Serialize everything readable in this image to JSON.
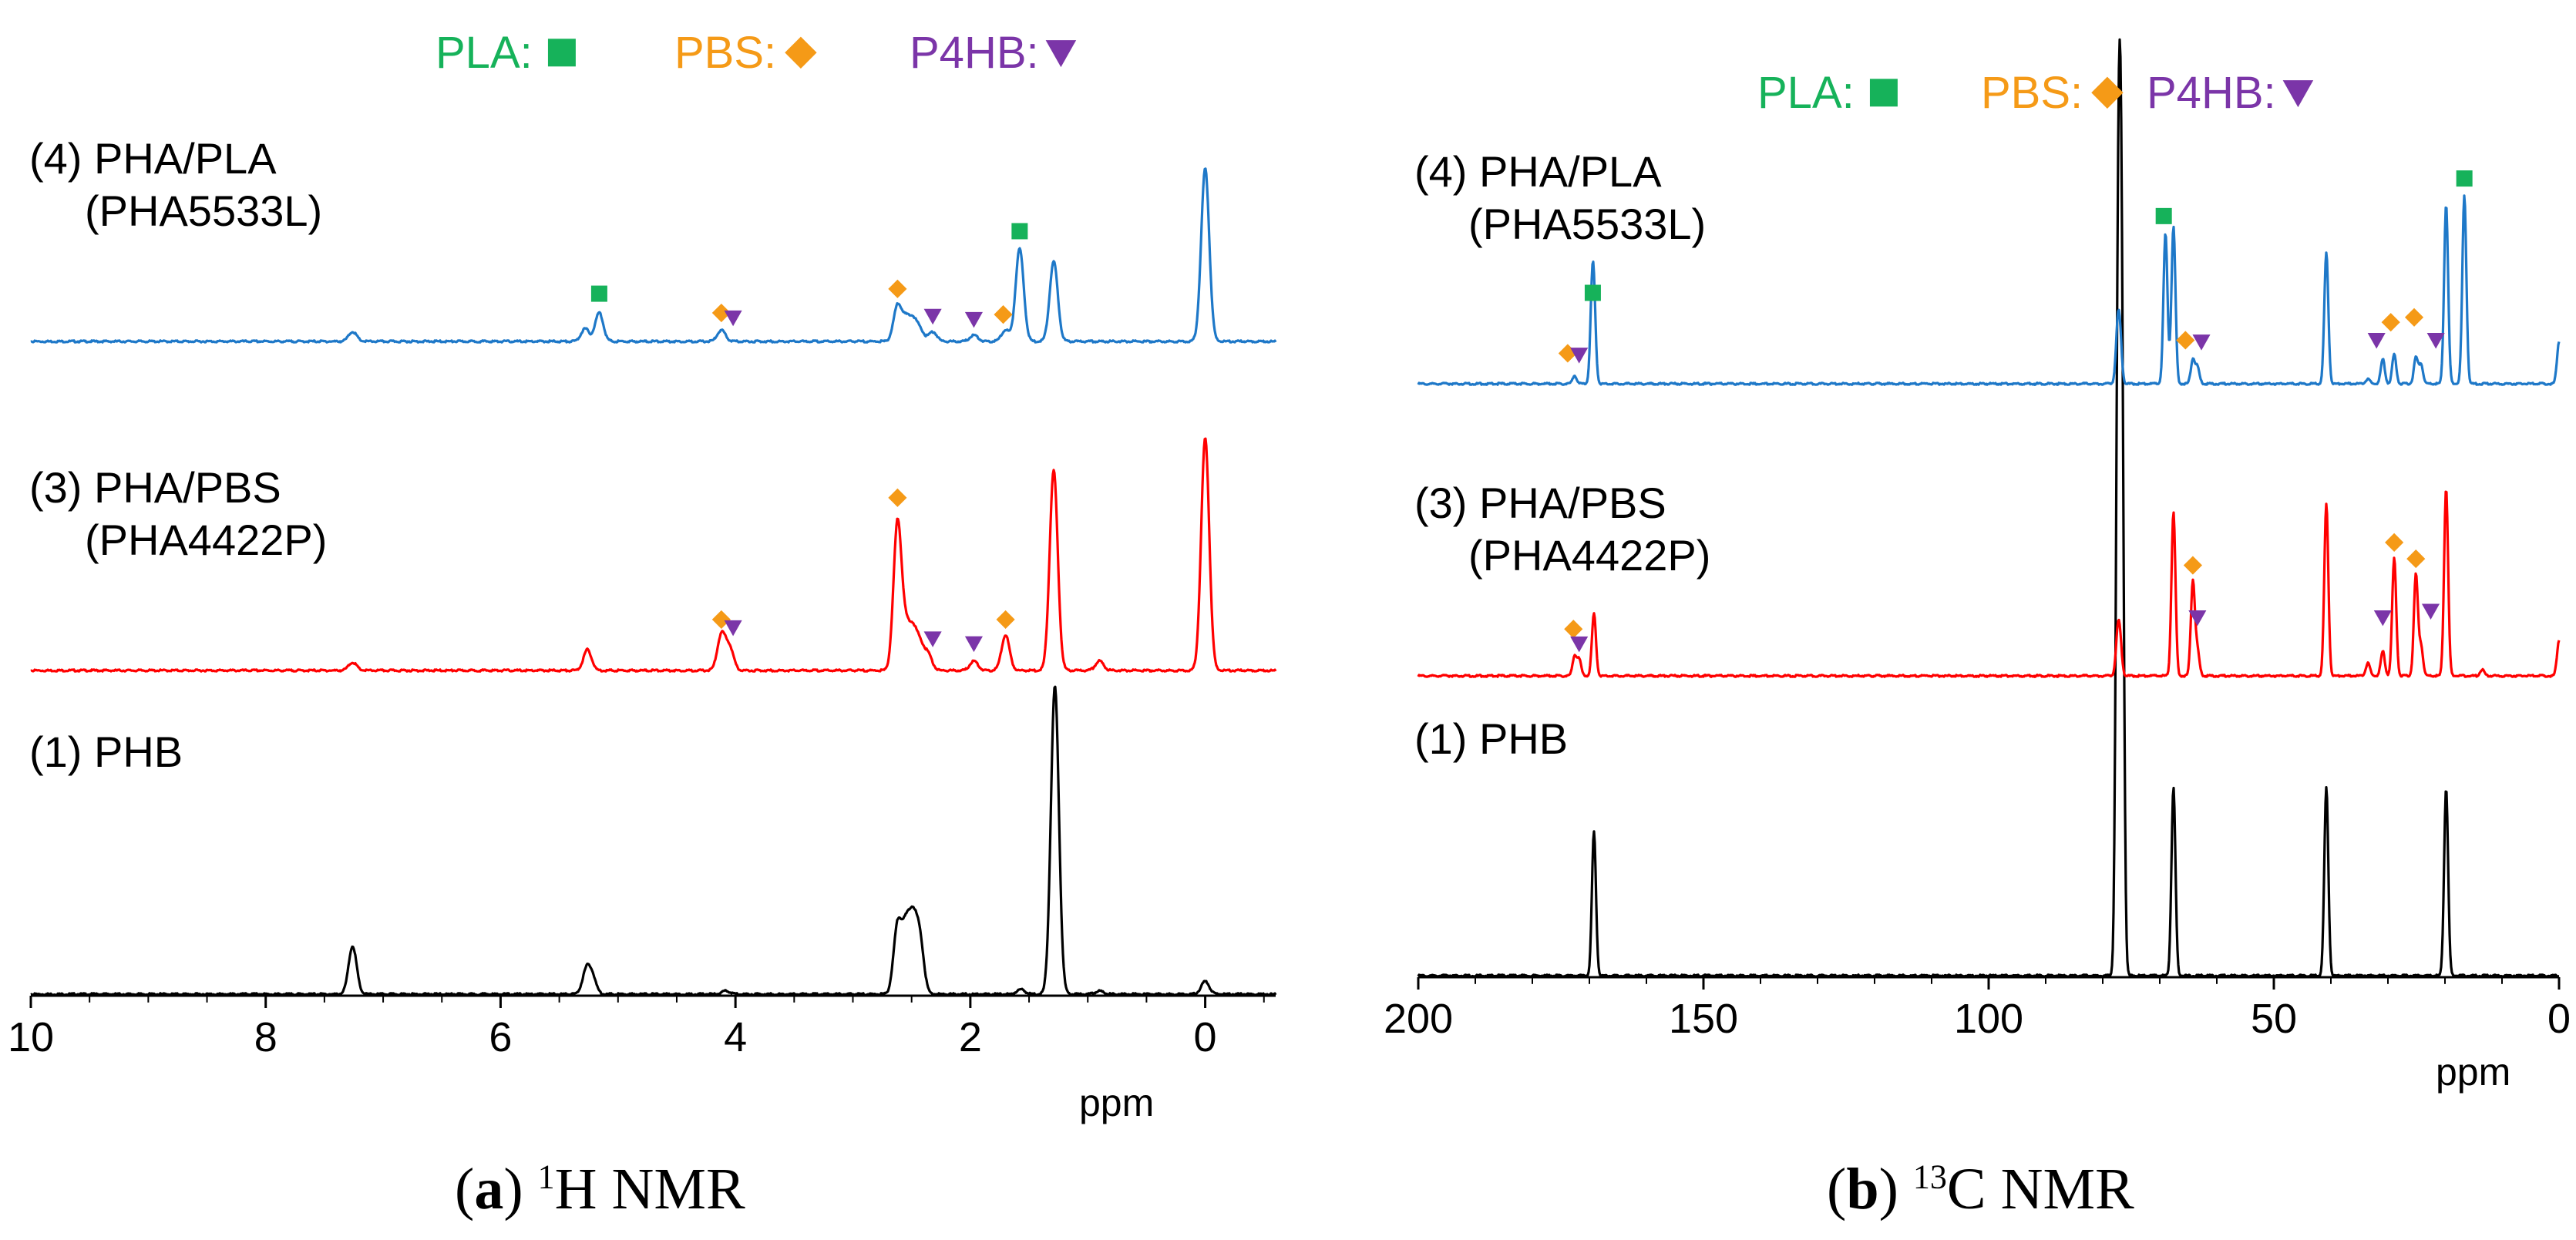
{
  "chart_data": [
    {
      "type": "line",
      "panel": "a",
      "panel_label": "a",
      "title": "H NMR",
      "title_sup": "1",
      "xlabel": "ppm",
      "ylabel": "",
      "xlim": [
        10,
        -0.6
      ],
      "x_reversed": true,
      "grid": false,
      "ticks": [
        10,
        8,
        6,
        4,
        2,
        0
      ],
      "tick_labels": [
        "10",
        "8",
        "6",
        "4",
        "2",
        "0"
      ],
      "legend": [
        {
          "name": "PLA:",
          "marker": "square",
          "color": "#16b25a"
        },
        {
          "name": "PBS:",
          "marker": "diamond",
          "color": "#f59a17"
        },
        {
          "name": "P4HB:",
          "marker": "triangle-down",
          "color": "#7b35a8"
        }
      ],
      "series": [
        {
          "name": "(1) PHB",
          "label": "(1) PHB",
          "sublabel": "",
          "color": "#000000",
          "peaks": [
            {
              "ppm": 7.26,
              "h": 0.3
            },
            {
              "ppm": 5.27,
              "h": 0.14
            },
            {
              "ppm": 5.22,
              "h": 0.1
            },
            {
              "ppm": 4.08,
              "h": 0.02
            },
            {
              "ppm": 2.62,
              "h": 0.42
            },
            {
              "ppm": 2.55,
              "h": 0.36
            },
            {
              "ppm": 2.49,
              "h": 0.4
            },
            {
              "ppm": 2.43,
              "h": 0.33
            },
            {
              "ppm": 1.57,
              "h": 0.03
            },
            {
              "ppm": 1.28,
              "h": 1.92
            },
            {
              "ppm": 0.9,
              "h": 0.02
            },
            {
              "ppm": 0.0,
              "h": 0.08
            }
          ],
          "markers": []
        },
        {
          "name": "(3) PHA/PBS",
          "label": "(3) PHA/PBS",
          "sublabel": "(PHA4422P)",
          "color": "#ff0000",
          "peaks": [
            {
              "ppm": 7.26,
              "h": 0.05
            },
            {
              "ppm": 5.26,
              "h": 0.13
            },
            {
              "ppm": 4.12,
              "h": 0.22
            },
            {
              "ppm": 4.05,
              "h": 0.14
            },
            {
              "ppm": 2.62,
              "h": 0.92
            },
            {
              "ppm": 2.55,
              "h": 0.22
            },
            {
              "ppm": 2.49,
              "h": 0.22
            },
            {
              "ppm": 2.43,
              "h": 0.15
            },
            {
              "ppm": 2.36,
              "h": 0.1
            },
            {
              "ppm": 1.97,
              "h": 0.06
            },
            {
              "ppm": 1.7,
              "h": 0.22
            },
            {
              "ppm": 1.29,
              "h": 1.25
            },
            {
              "ppm": 0.9,
              "h": 0.06
            },
            {
              "ppm": 0.0,
              "h": 1.45
            }
          ],
          "markers": [
            {
              "ppm": 4.12,
              "h": 0.26,
              "type": "diamond"
            },
            {
              "ppm": 4.02,
              "h": 0.21,
              "type": "triangle-down"
            },
            {
              "ppm": 2.62,
              "h": 1.02,
              "type": "diamond"
            },
            {
              "ppm": 2.32,
              "h": 0.14,
              "type": "triangle-down"
            },
            {
              "ppm": 1.97,
              "h": 0.11,
              "type": "triangle-down"
            },
            {
              "ppm": 1.7,
              "h": 0.26,
              "type": "diamond"
            }
          ]
        },
        {
          "name": "(4) PHA/PLA",
          "label": "(4) PHA/PLA",
          "sublabel": "(PHA5533L)",
          "color": "#1e78c8",
          "peaks": [
            {
              "ppm": 7.26,
              "h": 0.06
            },
            {
              "ppm": 5.28,
              "h": 0.08
            },
            {
              "ppm": 5.16,
              "h": 0.18
            },
            {
              "ppm": 4.12,
              "h": 0.07
            },
            {
              "ppm": 2.62,
              "h": 0.22
            },
            {
              "ppm": 2.55,
              "h": 0.12
            },
            {
              "ppm": 2.49,
              "h": 0.12
            },
            {
              "ppm": 2.43,
              "h": 0.07
            },
            {
              "ppm": 2.32,
              "h": 0.06
            },
            {
              "ppm": 1.97,
              "h": 0.04
            },
            {
              "ppm": 1.7,
              "h": 0.07
            },
            {
              "ppm": 1.58,
              "h": 0.58
            },
            {
              "ppm": 1.29,
              "h": 0.5
            },
            {
              "ppm": 0.0,
              "h": 1.08
            }
          ],
          "markers": [
            {
              "ppm": 5.16,
              "h": 0.24,
              "type": "square"
            },
            {
              "ppm": 4.12,
              "h": 0.12,
              "type": "diamond"
            },
            {
              "ppm": 4.02,
              "h": 0.09,
              "type": "triangle-down"
            },
            {
              "ppm": 2.62,
              "h": 0.27,
              "type": "diamond"
            },
            {
              "ppm": 2.32,
              "h": 0.1,
              "type": "triangle-down"
            },
            {
              "ppm": 1.97,
              "h": 0.08,
              "type": "triangle-down"
            },
            {
              "ppm": 1.72,
              "h": 0.11,
              "type": "diamond"
            },
            {
              "ppm": 1.58,
              "h": 0.63,
              "type": "square"
            }
          ]
        }
      ]
    },
    {
      "type": "line",
      "panel": "b",
      "panel_label": "b",
      "title": "C NMR",
      "title_sup": "13",
      "xlabel": "ppm",
      "ylabel": "",
      "xlim": [
        200,
        0
      ],
      "x_reversed": true,
      "grid": false,
      "ticks": [
        200,
        150,
        100,
        50,
        0
      ],
      "tick_labels": [
        "200",
        "150",
        "100",
        "50",
        "0"
      ],
      "legend": [
        {
          "name": "PLA:",
          "marker": "square",
          "color": "#16b25a"
        },
        {
          "name": "PBS:",
          "marker": "diamond",
          "color": "#f59a17"
        },
        {
          "name": "P4HB:",
          "marker": "triangle-down",
          "color": "#7b35a8"
        }
      ],
      "series": [
        {
          "name": "(1) PHB",
          "label": "(1) PHB",
          "sublabel": "",
          "color": "#000000",
          "peaks": [
            {
              "ppm": 169.2,
              "h": 0.88
            },
            {
              "ppm": 77.4,
              "h": 2.85
            },
            {
              "ppm": 77.0,
              "h": 2.8
            },
            {
              "ppm": 76.6,
              "h": 2.75
            },
            {
              "ppm": 67.6,
              "h": 1.15
            },
            {
              "ppm": 40.8,
              "h": 1.15
            },
            {
              "ppm": 19.8,
              "h": 1.15
            }
          ],
          "markers": []
        },
        {
          "name": "(3) PHA/PBS",
          "label": "(3) PHA/PBS",
          "sublabel": "(PHA4422P)",
          "color": "#ff0000",
          "peaks": [
            {
              "ppm": 172.6,
              "h": 0.12
            },
            {
              "ppm": 171.8,
              "h": 0.1
            },
            {
              "ppm": 169.2,
              "h": 0.38
            },
            {
              "ppm": 77.4,
              "h": 0.2
            },
            {
              "ppm": 77.0,
              "h": 0.2
            },
            {
              "ppm": 67.6,
              "h": 1.0
            },
            {
              "ppm": 64.2,
              "h": 0.58
            },
            {
              "ppm": 63.4,
              "h": 0.15
            },
            {
              "ppm": 40.8,
              "h": 1.05
            },
            {
              "ppm": 33.5,
              "h": 0.08
            },
            {
              "ppm": 30.9,
              "h": 0.15
            },
            {
              "ppm": 28.9,
              "h": 0.72
            },
            {
              "ppm": 25.1,
              "h": 0.62
            },
            {
              "ppm": 24.2,
              "h": 0.18
            },
            {
              "ppm": 19.8,
              "h": 1.15
            },
            {
              "ppm": 13.5,
              "h": 0.04
            },
            {
              "ppm": 0.0,
              "h": 0.22
            }
          ],
          "markers": [
            {
              "ppm": 172.8,
              "h": 0.23,
              "type": "diamond"
            },
            {
              "ppm": 171.8,
              "h": 0.14,
              "type": "triangle-down"
            },
            {
              "ppm": 64.2,
              "h": 0.62,
              "type": "diamond"
            },
            {
              "ppm": 63.4,
              "h": 0.3,
              "type": "triangle-down"
            },
            {
              "ppm": 30.9,
              "h": 0.3,
              "type": "triangle-down"
            },
            {
              "ppm": 28.9,
              "h": 0.76,
              "type": "diamond"
            },
            {
              "ppm": 25.1,
              "h": 0.66,
              "type": "diamond"
            },
            {
              "ppm": 22.5,
              "h": 0.34,
              "type": "triangle-down"
            }
          ]
        },
        {
          "name": "(4) PHA/PLA",
          "label": "(4) PHA/PLA",
          "sublabel": "(PHA5533L)",
          "color": "#1e78c8",
          "peaks": [
            {
              "ppm": 172.6,
              "h": 0.05
            },
            {
              "ppm": 169.5,
              "h": 0.46
            },
            {
              "ppm": 169.2,
              "h": 0.36
            },
            {
              "ppm": 77.4,
              "h": 0.27
            },
            {
              "ppm": 77.0,
              "h": 0.26
            },
            {
              "ppm": 69.0,
              "h": 0.92
            },
            {
              "ppm": 67.6,
              "h": 0.96
            },
            {
              "ppm": 64.2,
              "h": 0.15
            },
            {
              "ppm": 63.4,
              "h": 0.1
            },
            {
              "ppm": 40.8,
              "h": 0.8
            },
            {
              "ppm": 33.5,
              "h": 0.03
            },
            {
              "ppm": 30.9,
              "h": 0.15
            },
            {
              "ppm": 28.9,
              "h": 0.18
            },
            {
              "ppm": 25.1,
              "h": 0.16
            },
            {
              "ppm": 24.2,
              "h": 0.12
            },
            {
              "ppm": 19.8,
              "h": 1.1
            },
            {
              "ppm": 16.6,
              "h": 1.15
            },
            {
              "ppm": 0.0,
              "h": 0.26
            }
          ],
          "markers": [
            {
              "ppm": 169.4,
              "h": 0.5,
              "type": "square"
            },
            {
              "ppm": 173.8,
              "h": 0.13,
              "type": "diamond"
            },
            {
              "ppm": 171.8,
              "h": 0.12,
              "type": "triangle-down"
            },
            {
              "ppm": 69.3,
              "h": 0.97,
              "type": "square"
            },
            {
              "ppm": 65.5,
              "h": 0.21,
              "type": "diamond"
            },
            {
              "ppm": 62.7,
              "h": 0.2,
              "type": "triangle-down"
            },
            {
              "ppm": 32.0,
              "h": 0.21,
              "type": "triangle-down"
            },
            {
              "ppm": 29.5,
              "h": 0.32,
              "type": "diamond"
            },
            {
              "ppm": 25.4,
              "h": 0.35,
              "type": "diamond"
            },
            {
              "ppm": 21.6,
              "h": 0.21,
              "type": "triangle-down"
            },
            {
              "ppm": 16.6,
              "h": 1.2,
              "type": "square"
            }
          ]
        }
      ]
    }
  ]
}
